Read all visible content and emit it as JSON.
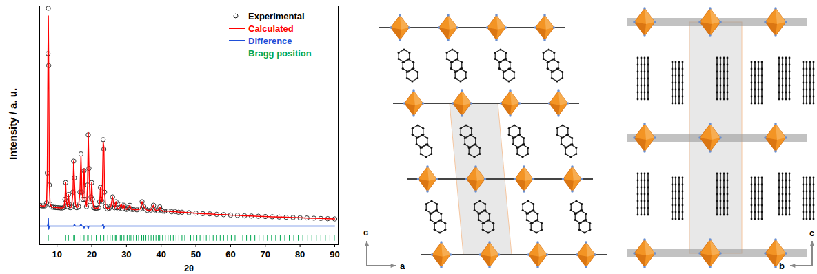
{
  "chart_data": {
    "type": "line",
    "x_label": "2θ",
    "y_label": "Intensity / a. u.",
    "x": [
      5,
      5.5,
      6,
      6.5,
      7,
      7.2,
      7.4,
      7.5,
      7.6,
      7.8,
      8,
      8.5,
      9,
      9.5,
      10,
      10.5,
      11,
      11.5,
      12,
      12.3,
      12.5,
      12.7,
      13,
      13.3,
      13.5,
      13.8,
      14.2,
      14.6,
      14.8,
      15,
      15.3,
      15.7,
      16.2,
      16.6,
      16.9,
      17.2,
      17.5,
      17.8,
      18.1,
      18.5,
      18.8,
      19,
      19.2,
      19.5,
      19.8,
      20,
      20.2,
      20.6,
      21,
      21.5,
      22,
      22.3,
      22.5,
      22.7,
      23,
      23.3,
      23.5,
      23.7,
      24,
      24.5,
      25,
      25.5,
      26,
      26.3,
      26.6,
      27,
      27.3,
      27.7,
      28,
      28.5,
      29,
      29.3,
      29.6,
      30,
      30.5,
      31,
      31.3,
      31.6,
      32,
      33,
      34,
      34.5,
      35,
      35.5,
      36,
      37,
      37.8,
      38.2,
      39,
      39.6,
      40,
      40.4,
      41,
      42,
      43,
      44,
      45,
      46,
      48,
      50,
      52,
      54,
      56,
      58,
      60,
      62,
      64,
      66,
      68,
      70,
      72,
      74,
      76,
      78,
      80,
      82,
      84,
      86,
      88,
      90
    ],
    "series": [
      {
        "name": "Experimental",
        "type": "scatter",
        "marker": "circle",
        "color": "#222222",
        "values": [
          16.5,
          16.3,
          16.2,
          16.3,
          17.5,
          30,
          80,
          99,
          75,
          25,
          17,
          15.8,
          15.7,
          15.6,
          15.5,
          15.5,
          15.4,
          15.4,
          15.6,
          19,
          26,
          18,
          16,
          21,
          17,
          15.5,
          15.8,
          22,
          35,
          28,
          17,
          15.5,
          16,
          22,
          38,
          22,
          19,
          31,
          19,
          16,
          25,
          46,
          32,
          18,
          20,
          26,
          19,
          15.5,
          15.3,
          15.3,
          15.5,
          18,
          24,
          19,
          18,
          44,
          40,
          22,
          16,
          15,
          15.2,
          16,
          20,
          17,
          15.5,
          18,
          15.5,
          15,
          15.5,
          17,
          15,
          16.5,
          15,
          14.8,
          15.5,
          16.5,
          15,
          14.8,
          14.8,
          14.6,
          15,
          18,
          16,
          15,
          14.4,
          14.5,
          16.5,
          14.6,
          14.2,
          15.8,
          14.5,
          14.1,
          14,
          14.1,
          13.8,
          13.9,
          13.6,
          13.6,
          13.4,
          13.2,
          13,
          12.9,
          12.7,
          12.6,
          12.4,
          12.3,
          12.1,
          12,
          11.9,
          11.8,
          11.7,
          11.6,
          11.5,
          11.4,
          11.3,
          11.2,
          11.1,
          11,
          10.9,
          10.8
        ]
      },
      {
        "name": "Calculated",
        "type": "line",
        "color": "#ff0000",
        "values": [
          16.5,
          16.3,
          16.2,
          16.3,
          17.5,
          30,
          79.3,
          95.8,
          76.3,
          25,
          17,
          15.8,
          15.7,
          15.6,
          15.5,
          15.5,
          15.4,
          15.4,
          15.6,
          19,
          26,
          18,
          16,
          21,
          17,
          15.5,
          15.8,
          22,
          35,
          27.3,
          17,
          15.5,
          16,
          22,
          37.2,
          22,
          19,
          31.8,
          19,
          16,
          25,
          47,
          32,
          18,
          20,
          26,
          19,
          15.5,
          15.3,
          15.3,
          15.5,
          18,
          24,
          19,
          18,
          43.1,
          40.8,
          22,
          16,
          15,
          15.2,
          16,
          20,
          17,
          15.5,
          18,
          15.5,
          15,
          15.5,
          17,
          15,
          16.5,
          15,
          14.8,
          15.5,
          16.5,
          15,
          14.8,
          14.8,
          14.6,
          15,
          18,
          16,
          15,
          14.4,
          14.5,
          16.5,
          14.6,
          14.2,
          15.8,
          14.5,
          14.1,
          14,
          14.1,
          13.8,
          13.9,
          13.6,
          13.6,
          13.4,
          13.2,
          13,
          12.9,
          12.7,
          12.6,
          12.4,
          12.3,
          12.1,
          12,
          11.9,
          11.8,
          11.7,
          11.6,
          11.5,
          11.4,
          11.3,
          11.2,
          11.1,
          11,
          10.9,
          10.8
        ]
      },
      {
        "name": "Difference",
        "type": "line",
        "color": "#1f4fd8",
        "values": [
          7.8,
          7.8,
          7.8,
          7.8,
          7.8,
          7.8,
          8.5,
          11,
          6.5,
          7.8,
          7.8,
          7.8,
          7.8,
          7.8,
          7.8,
          7.8,
          7.8,
          7.8,
          7.8,
          7.8,
          7.8,
          7.8,
          7.8,
          7.8,
          7.8,
          7.8,
          7.8,
          7.8,
          7.8,
          8.5,
          7.8,
          7.8,
          7.8,
          7.8,
          8.6,
          7.8,
          7.8,
          7,
          7.8,
          7.8,
          7.8,
          6.8,
          7.8,
          7.8,
          7.8,
          7.8,
          7.8,
          7.8,
          7.8,
          7.8,
          7.8,
          7.8,
          7.8,
          7.8,
          7.8,
          8.7,
          7,
          7.8,
          7.8,
          7.8,
          7.8,
          7.8,
          7.8,
          7.8,
          7.8,
          7.8,
          7.8,
          7.8,
          7.8,
          7.8,
          7.8,
          7.8,
          7.8,
          7.8,
          7.8,
          7.8,
          7.8,
          7.8,
          7.8,
          7.8,
          7.8,
          7.8,
          7.8,
          7.8,
          7.8,
          7.8,
          7.8,
          7.8,
          7.8,
          7.8,
          7.8,
          7.8,
          7.8,
          7.8,
          7.8,
          7.8,
          7.8,
          7.8,
          7.8,
          7.8,
          7.8,
          7.8,
          7.8,
          7.8,
          7.8,
          7.8,
          7.8,
          7.8,
          7.8,
          7.8,
          7.8,
          7.8,
          7.8,
          7.8,
          7.8,
          7.8,
          7.8,
          7.8,
          7.8,
          7.8
        ]
      },
      {
        "name": "Bragg position",
        "type": "tick",
        "color": "#00a651",
        "tick_range": [
          1.5,
          4
        ],
        "positions": [
          7.5,
          12.5,
          13.3,
          14.8,
          15.1,
          16.9,
          17.8,
          18.8,
          19.0,
          20.0,
          21.3,
          22.5,
          23.3,
          23.5,
          24.6,
          25.3,
          26.0,
          26.8,
          27.0,
          28.2,
          28.6,
          29.3,
          30.2,
          30.9,
          31.3,
          32.1,
          32.8,
          33.5,
          34.4,
          35.0,
          35.6,
          36.3,
          37.1,
          37.8,
          38.5,
          39.2,
          39.6,
          40.4,
          41.2,
          42.0,
          42.7,
          43.5,
          44.3,
          45.1,
          46.0,
          46.8,
          47.7,
          48.5,
          49.4,
          50.3,
          51.2,
          52.1,
          53.0,
          54.0,
          55.0,
          56.0,
          57.0,
          58.0,
          59.1,
          60.2,
          61.3,
          62.4,
          63.5,
          64.6,
          65.8,
          67.0,
          68.2,
          69.4,
          70.6,
          71.8,
          73.0,
          74.3,
          75.6,
          76.9,
          78.2,
          79.5,
          80.8,
          82.1,
          83.4,
          84.7,
          86.0,
          87.3,
          88.6,
          89.9
        ]
      }
    ],
    "xlim": [
      5,
      91
    ],
    "xticks": [
      10,
      20,
      30,
      40,
      50,
      60,
      70,
      80,
      90
    ],
    "ylim": [
      0,
      100
    ],
    "yticks": [],
    "tick_labels": "x",
    "legend": "top-right"
  },
  "structures": [
    {
      "axes": {
        "vertical": "c",
        "horizontal": "a"
      }
    },
    {
      "axes": {
        "vertical": "c",
        "horizontal": "b"
      }
    }
  ]
}
